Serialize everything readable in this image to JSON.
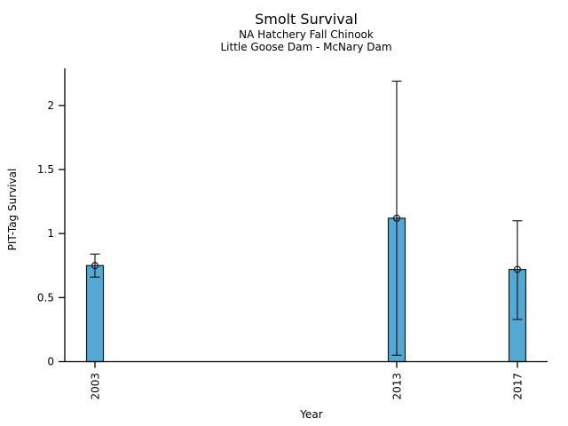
{
  "chart_data": {
    "type": "bar",
    "title": "Smolt Survival",
    "subtitles": [
      "NA Hatchery Fall Chinook",
      "Little Goose Dam - McNary Dam"
    ],
    "xlabel": "Year",
    "ylabel": "PIT-Tag Survival",
    "categories": [
      "2003",
      "2013",
      "2017"
    ],
    "x_values": [
      2003,
      2013,
      2017
    ],
    "series": [
      {
        "name": "PIT-Tag Survival",
        "values": [
          0.75,
          1.12,
          0.72
        ]
      }
    ],
    "error_bars": {
      "low": [
        0.66,
        0.05,
        0.33
      ],
      "high": [
        0.84,
        2.19,
        1.1
      ]
    },
    "xlim": [
      2002,
      2018
    ],
    "ylim": [
      0,
      2.29
    ],
    "y_tick_values": [
      0,
      0.5,
      1,
      1.5,
      2
    ],
    "y_tick_labels": [
      "0",
      "0.5",
      "1",
      "1.5",
      "2"
    ],
    "grid": false,
    "legend": false,
    "marker": "open-circle",
    "colors": {
      "bar_fill": "#55A8D4",
      "bar_edge": "#1a1a1a",
      "error_bar": "#1a1a1a",
      "axis": "#000000",
      "text": "#000000",
      "background": "#FFFFFF"
    }
  }
}
